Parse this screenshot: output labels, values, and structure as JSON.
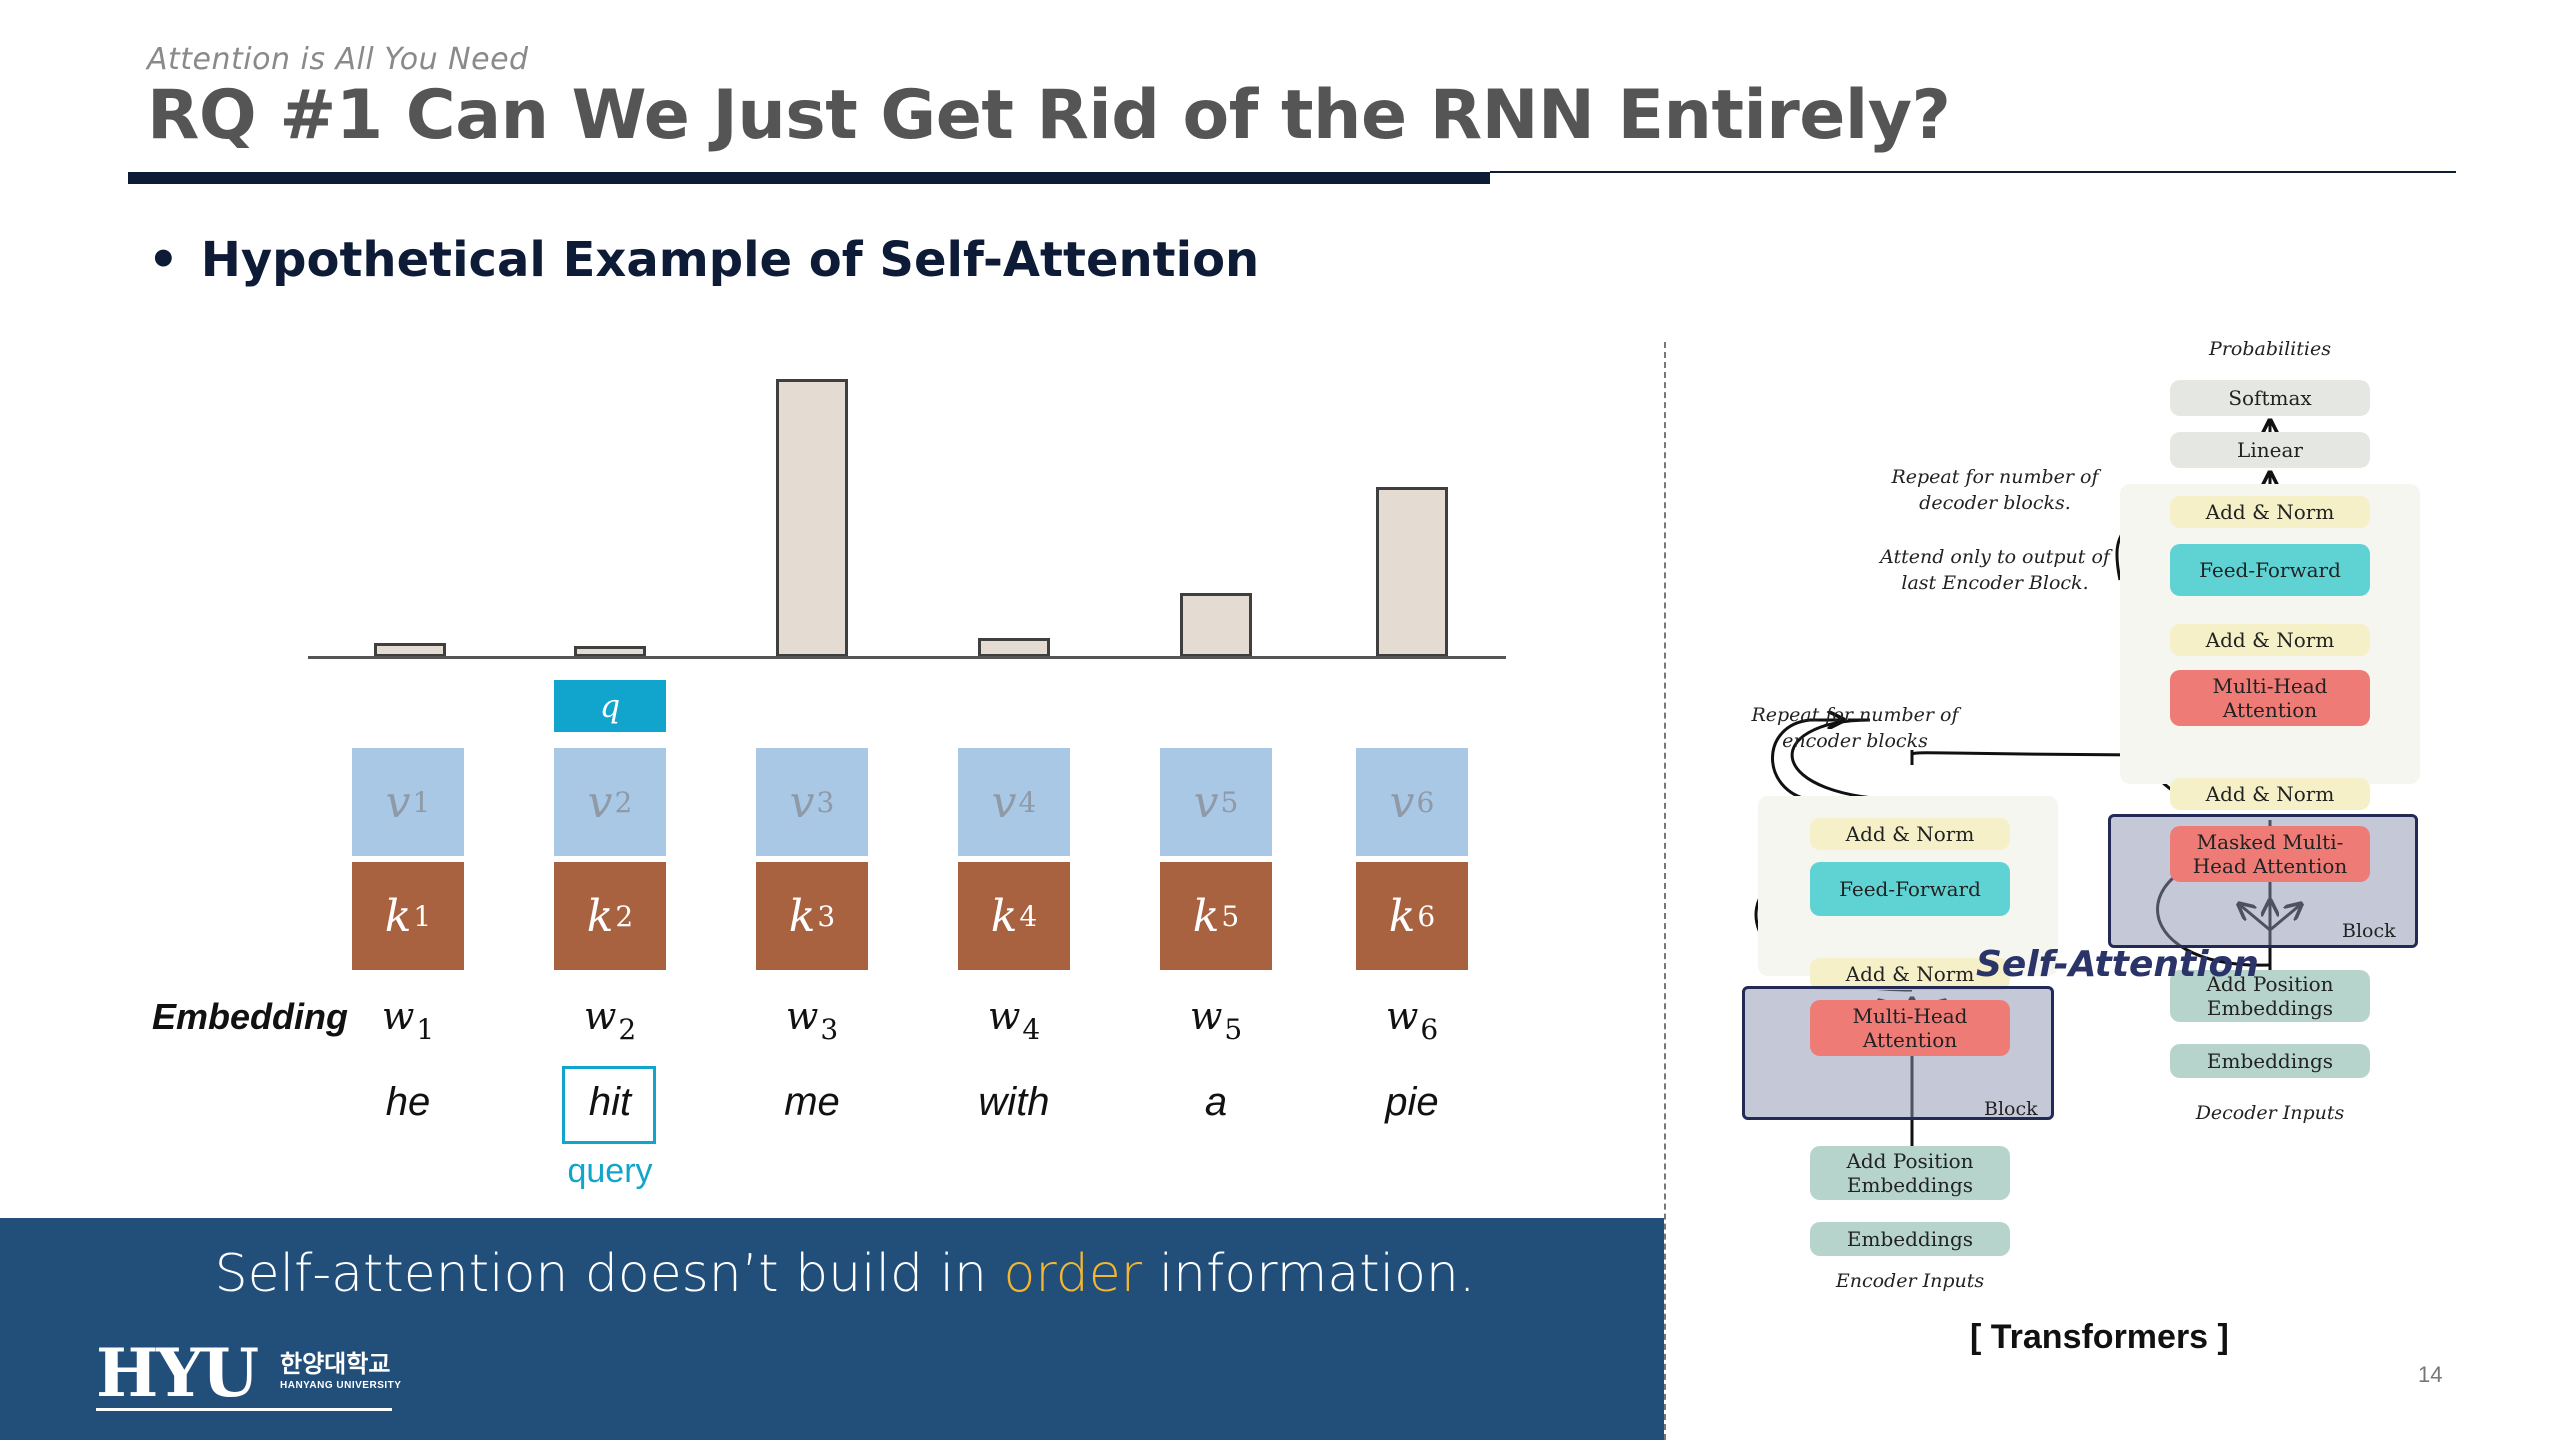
{
  "header": {
    "subtitle": "Attention is All You Need",
    "title": "RQ #1 Can We Just Get Rid of the RNN Entirely?"
  },
  "bullet": {
    "dot": "•",
    "text": "Hypothetical Example of Self-Attention"
  },
  "attention_scores": {
    "label": "attention score per token (relative)",
    "values": [
      0.05,
      0.04,
      1.0,
      0.07,
      0.23,
      0.61
    ]
  },
  "query_box": {
    "symbol": "q"
  },
  "columns": [
    {
      "v": "v",
      "k": "k",
      "w": "w",
      "index": "1",
      "word": "he"
    },
    {
      "v": "v",
      "k": "k",
      "w": "w",
      "index": "2",
      "word": "hit"
    },
    {
      "v": "v",
      "k": "k",
      "w": "w",
      "index": "3",
      "word": "me"
    },
    {
      "v": "v",
      "k": "k",
      "w": "w",
      "index": "4",
      "word": "with"
    },
    {
      "v": "v",
      "k": "k",
      "w": "w",
      "index": "5",
      "word": "a"
    },
    {
      "v": "v",
      "k": "k",
      "w": "w",
      "index": "6",
      "word": "pie"
    }
  ],
  "embedding_label": "Embedding",
  "query_label": "query",
  "banner": {
    "before": "Self-attention doesn’t build in ",
    "highlight": "order",
    "after": " information."
  },
  "logo": {
    "main": "HYU",
    "korean": "한양대학교",
    "english": "HANYANG UNIVERSITY"
  },
  "transformer": {
    "probabilities": "Probabilities",
    "softmax": "Softmax",
    "linear": "Linear",
    "dec_add_norm_top": "Add & Norm",
    "dec_feed_forward": "Feed-Forward",
    "dec_add_norm_mid": "Add & Norm",
    "dec_mha_1": "Multi-Head",
    "dec_mha_2": "Attention",
    "dec_add_norm_low": "Add & Norm",
    "masked_1": "Masked Multi-",
    "masked_2": "Head Attention",
    "dec_block": "Block",
    "dec_pos_1": "Add Position",
    "dec_pos_2": "Embeddings",
    "dec_embeddings": "Embeddings",
    "decoder_inputs": "Decoder Inputs",
    "enc_add_norm_top": "Add & Norm",
    "enc_feed_forward": "Feed-Forward",
    "enc_add_norm_low": "Add & Norm",
    "enc_mha_1": "Multi-Head",
    "enc_mha_2": "Attention",
    "enc_block": "Block",
    "enc_pos_1": "Add Position",
    "enc_pos_2": "Embeddings",
    "enc_embeddings": "Embeddings",
    "encoder_inputs": "Encoder Inputs",
    "note_dec_1": "Repeat  for number of",
    "note_dec_2": "decoder blocks.",
    "note_attend_1": "Attend only to output of",
    "note_attend_2": "last Encoder Block.",
    "note_enc_1": "Repeat  for number of",
    "note_enc_2": "encoder blocks",
    "self_attention": "Self-Attention",
    "caption": "[ Transformers ]"
  },
  "page_number": "14"
}
